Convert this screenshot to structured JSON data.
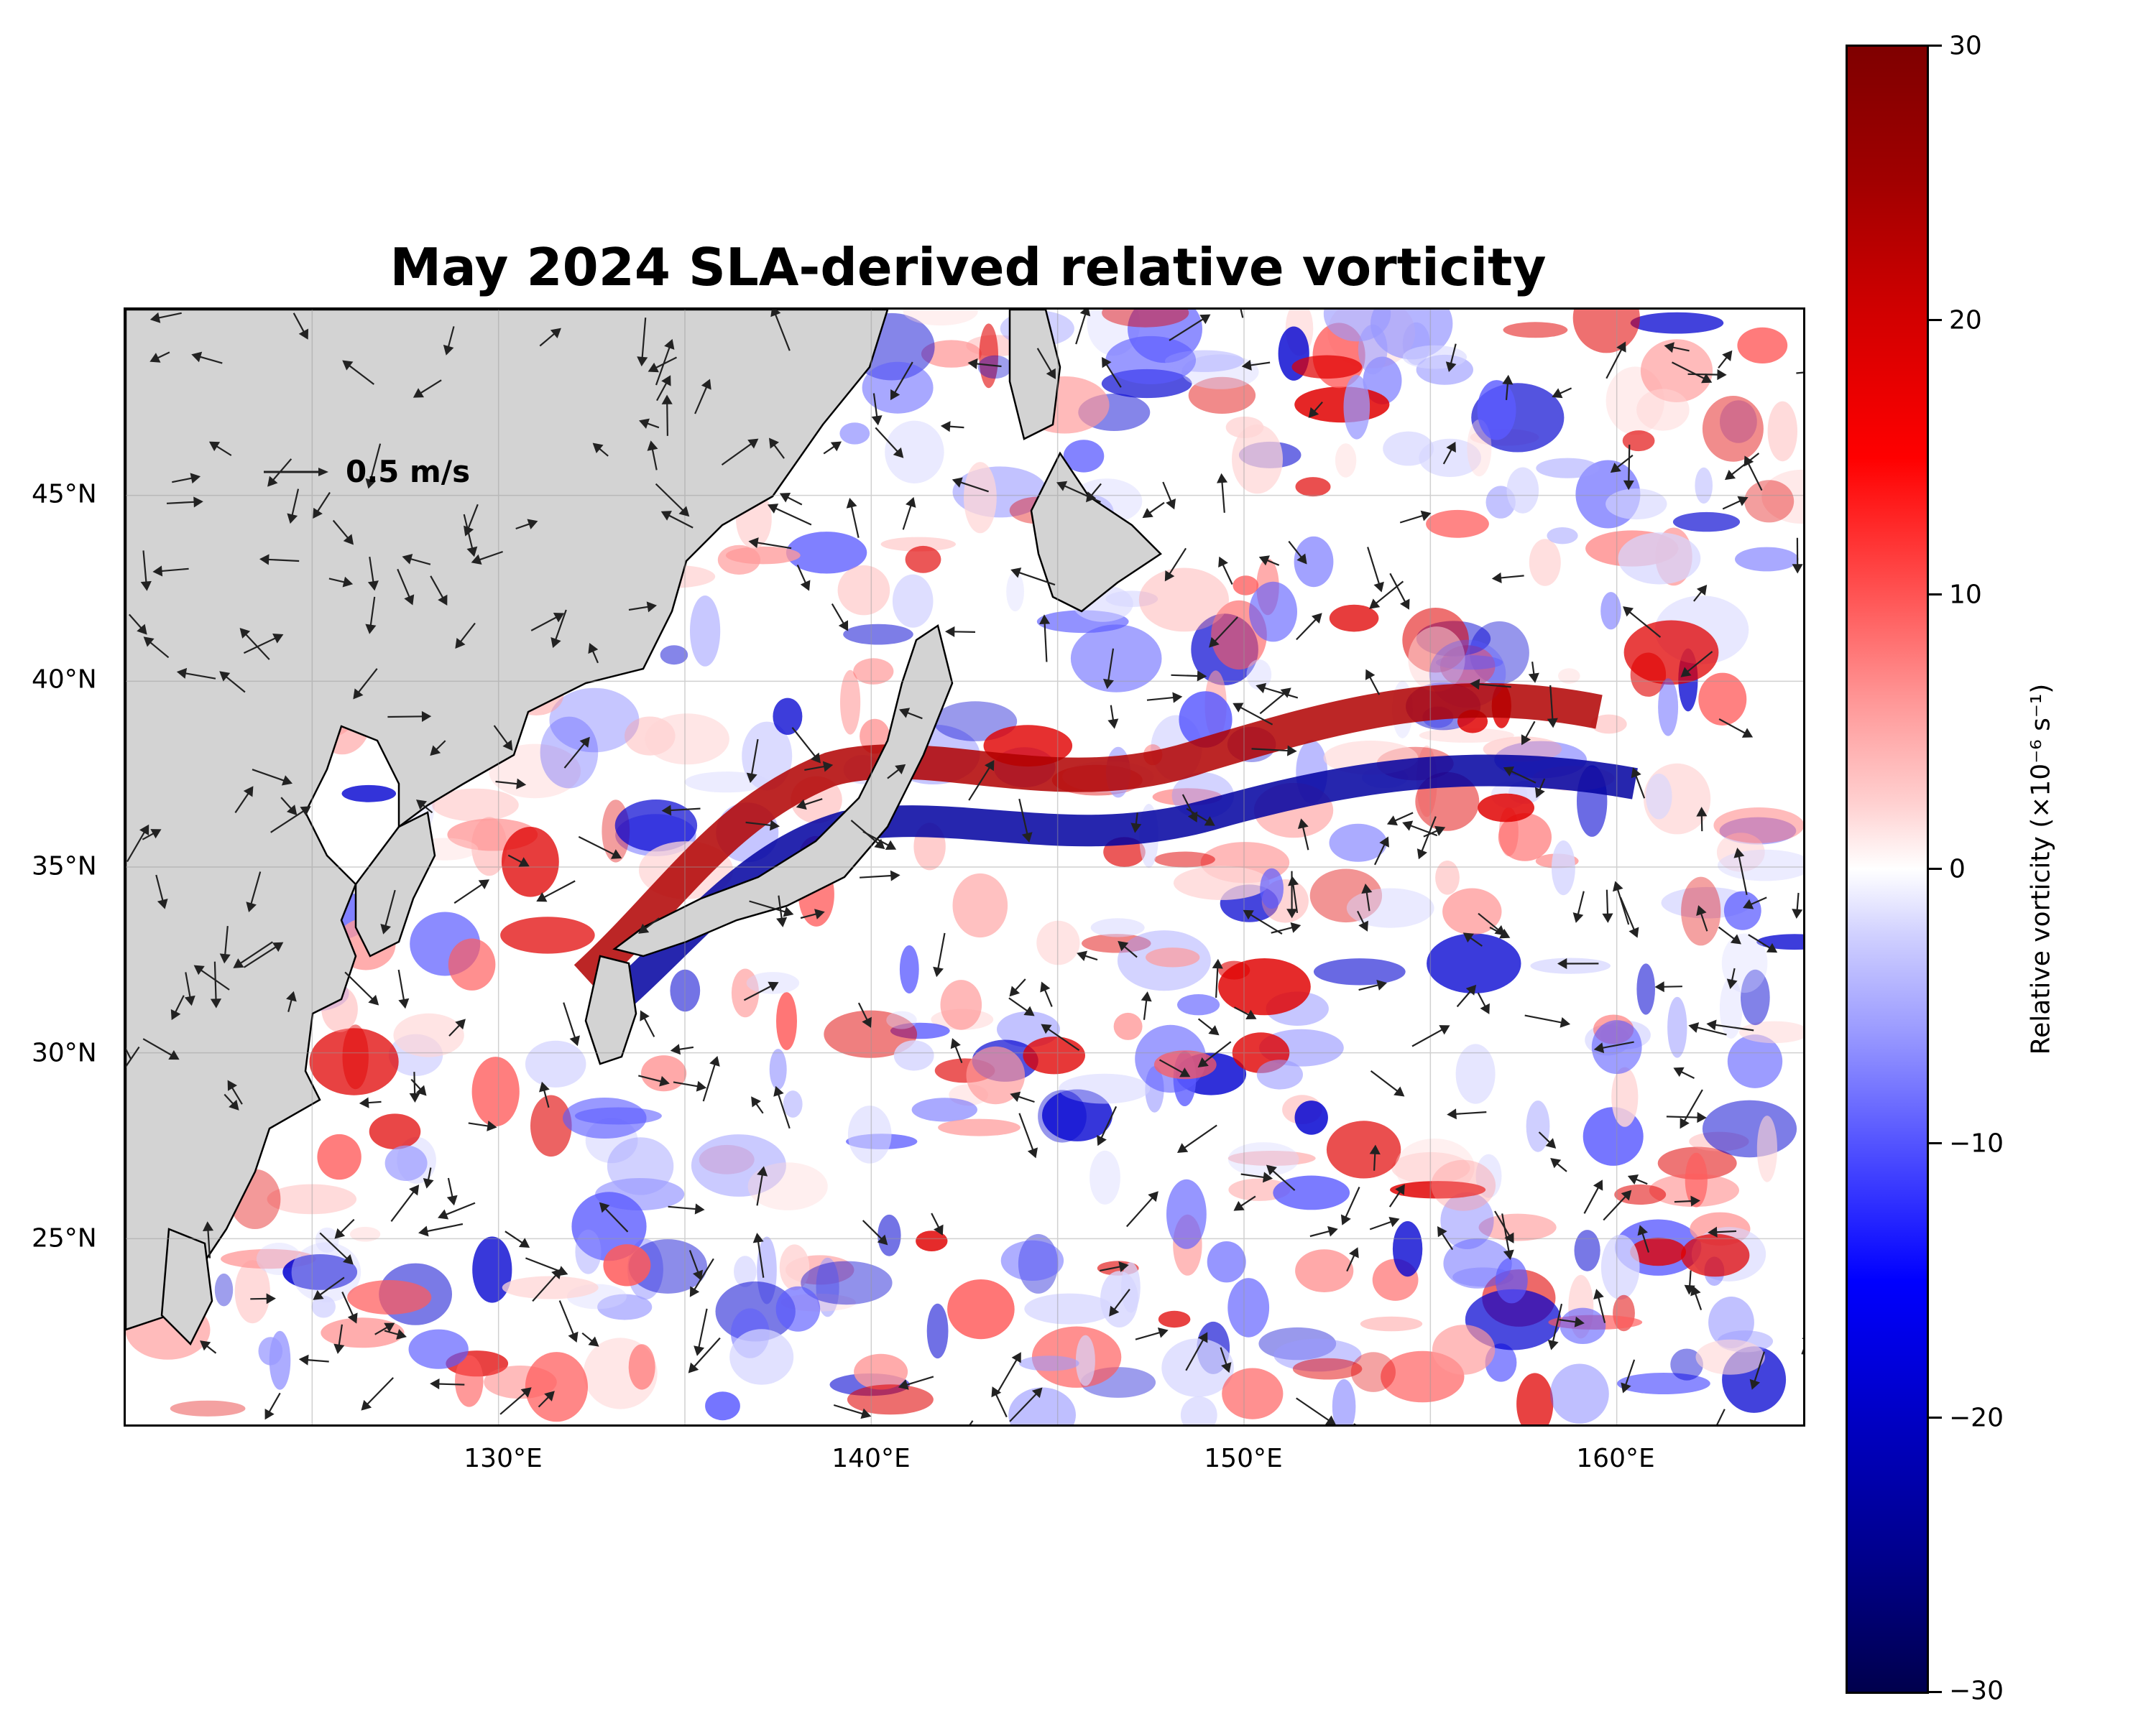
{
  "figure": {
    "title": "May 2024 SLA-derived relative vorticity",
    "x_ticks": [
      "130°E",
      "140°E",
      "150°E",
      "160°E"
    ],
    "y_ticks": [
      "45°N",
      "40°N",
      "35°N",
      "30°N",
      "25°N"
    ],
    "quiver_key_label": "0.5 m/s"
  },
  "colorbar": {
    "label": "Relative vorticity (×10⁻⁶ s⁻¹)",
    "ticks": [
      "30",
      "20",
      "10",
      "0",
      "−10",
      "−20",
      "−30"
    ],
    "range": [
      -30,
      30
    ],
    "colormap": "seismic",
    "colors": {
      "max": "#7f0000",
      "mid": "#ffffff",
      "min": "#00004d"
    }
  },
  "map": {
    "lon_range": [
      120,
      165
    ],
    "lat_range": [
      20,
      50
    ],
    "land_color": "#d3d3d3",
    "gridlines": true
  }
}
